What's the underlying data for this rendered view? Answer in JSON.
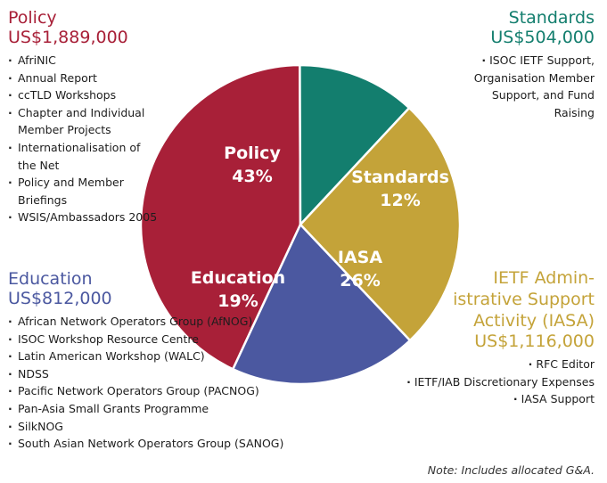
{
  "chart_data": {
    "type": "pie",
    "slices": [
      {
        "name": "Policy",
        "value": 43,
        "label": "43%",
        "color": "#a82038"
      },
      {
        "name": "Standards",
        "value": 12,
        "label": "12%",
        "color": "#137e6e"
      },
      {
        "name": "IASA",
        "value": 26,
        "label": "26%",
        "color": "#c4a339"
      },
      {
        "name": "Education",
        "value": 19,
        "label": "19%",
        "color": "#4b58a0"
      }
    ]
  },
  "policy": {
    "title": "Policy",
    "amount": "US$1,889,000",
    "items": [
      "AfriNIC",
      "Annual Report",
      "ccTLD Workshops",
      "Chapter and Individual Member Projects",
      "Internationalisation of the Net",
      "Policy and Member Briefings",
      "WSIS/Ambassadors 2005"
    ]
  },
  "standards": {
    "title": "Standards",
    "amount": "US$504,000",
    "items": [
      "ISOC IETF Support, Organisation Member Support, and Fund Raising"
    ]
  },
  "education": {
    "title": "Education",
    "amount": "US$812,000",
    "items": [
      "African Network Operators Group (AfNOG)",
      "ISOC Workshop Resource Centre",
      "Latin American Workshop (WALC)",
      "NDSS",
      "Pacific Network Operators Group (PACNOG)",
      "Pan-Asia Small Grants Programme",
      "SilkNOG",
      "South Asian Network Operators Group (SANOG)"
    ]
  },
  "iasa": {
    "title_line1": "IETF Admin-",
    "title_line2": "istrative Support",
    "title_line3": "Activity (IASA)",
    "amount": "US$1,116,000",
    "items": [
      "RFC Editor",
      "IETF/IAB Discretionary Expenses",
      "IASA Support"
    ]
  },
  "note": "Note: Includes allocated G&A."
}
